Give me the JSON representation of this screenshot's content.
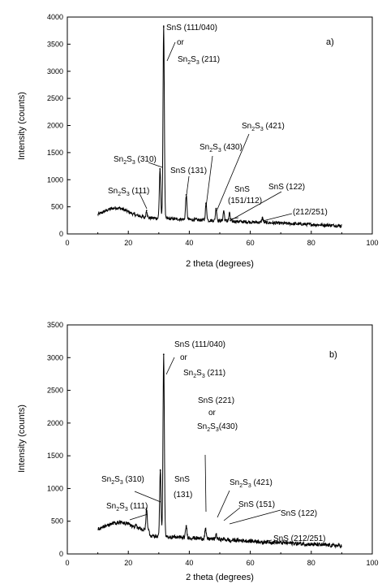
{
  "chart_data": [
    {
      "type": "line",
      "panel_label": "a)",
      "xlabel": "2 theta (degrees)",
      "ylabel": "Intensity (counts)",
      "xlim": [
        0,
        100
      ],
      "ylim": [
        0,
        4000
      ],
      "xticks": [
        "0",
        "20",
        "40",
        "60",
        "80",
        "100"
      ],
      "yticks": [
        "0",
        "500",
        "1000",
        "1500",
        "2000",
        "2500",
        "3000",
        "3500",
        "4000"
      ],
      "grid": false,
      "peaks": [
        {
          "x": 26.0,
          "y": 430
        },
        {
          "x": 30.4,
          "y": 1200
        },
        {
          "x": 31.6,
          "y": 3820
        },
        {
          "x": 39.0,
          "y": 720
        },
        {
          "x": 45.5,
          "y": 560
        },
        {
          "x": 48.8,
          "y": 470
        },
        {
          "x": 51.3,
          "y": 420
        },
        {
          "x": 53.2,
          "y": 380
        },
        {
          "x": 64.0,
          "y": 300
        }
      ],
      "annotations": [
        {
          "text": "SnS (111/040)"
        },
        {
          "text": "or"
        },
        {
          "text": "Sn2S3 (211)"
        },
        {
          "text": "Sn2S3 (310)"
        },
        {
          "text": "Sn2S3 (111)"
        },
        {
          "text": "SnS (131)"
        },
        {
          "text": "Sn2S3 (430)"
        },
        {
          "text": "Sn2S3 (421)"
        },
        {
          "text": "SnS"
        },
        {
          "text": "(151/112)"
        },
        {
          "text": "SnS (122)"
        },
        {
          "text": "(212/251)"
        }
      ]
    },
    {
      "type": "line",
      "panel_label": "b)",
      "xlabel": "2 theta (degrees)",
      "ylabel": "Intensity (counts)",
      "xlim": [
        0,
        100
      ],
      "ylim": [
        0,
        3500
      ],
      "xticks": [
        "0",
        "20",
        "40",
        "60",
        "80",
        "100"
      ],
      "yticks": [
        "0",
        "500",
        "1000",
        "1500",
        "2000",
        "2500",
        "3000",
        "3500"
      ],
      "grid": false,
      "peaks": [
        {
          "x": 22.5,
          "y": 450
        },
        {
          "x": 26.0,
          "y": 700
        },
        {
          "x": 30.5,
          "y": 1280
        },
        {
          "x": 31.6,
          "y": 3050
        },
        {
          "x": 39.0,
          "y": 430
        },
        {
          "x": 45.3,
          "y": 380
        },
        {
          "x": 48.8,
          "y": 300
        },
        {
          "x": 51.3,
          "y": 230
        },
        {
          "x": 53.5,
          "y": 190
        },
        {
          "x": 64.0,
          "y": 160
        }
      ],
      "annotations": [
        {
          "text": "SnS (111/040)"
        },
        {
          "text": "or"
        },
        {
          "text": "Sn2S3 (211)"
        },
        {
          "text": "SnS (221)"
        },
        {
          "text": "or"
        },
        {
          "text": "Sn2S3(430)"
        },
        {
          "text": "Sn2S3 (310)"
        },
        {
          "text": "Sn2S3 (111)"
        },
        {
          "text": "SnS"
        },
        {
          "text": "(131)"
        },
        {
          "text": "Sn2S3 (421)"
        },
        {
          "text": "SnS (151)"
        },
        {
          "text": "SnS (122)"
        },
        {
          "text": "SnS (212/251)"
        }
      ]
    }
  ]
}
